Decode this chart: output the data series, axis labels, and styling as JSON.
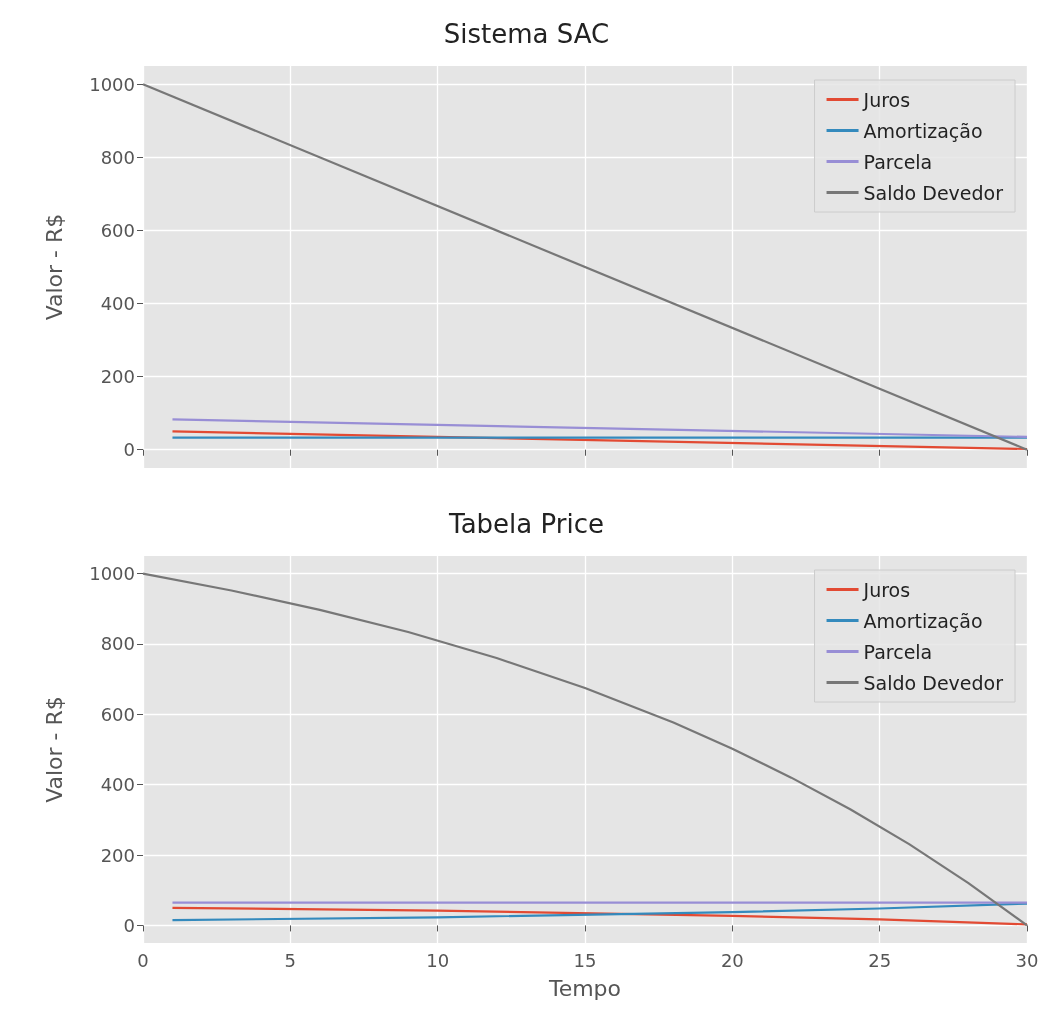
{
  "chart_data": [
    {
      "type": "line",
      "title": "Sistema SAC",
      "ylabel": "Valor - R$",
      "xlim": [
        0,
        30
      ],
      "xticks": [
        0,
        5,
        10,
        15,
        20,
        25,
        30
      ],
      "ylim": [
        -50,
        1050
      ],
      "yticks": [
        0,
        200,
        400,
        600,
        800,
        1000
      ],
      "tick_labels": "y",
      "grid": true,
      "legend": "top right",
      "series": [
        {
          "name": "Juros",
          "color": "#e24a33",
          "x": [
            1,
            30
          ],
          "values": [
            50,
            2
          ]
        },
        {
          "name": "Amortização",
          "color": "#348abd",
          "x": [
            1,
            30
          ],
          "values": [
            33,
            33
          ]
        },
        {
          "name": "Parcela",
          "color": "#988ed5",
          "x": [
            1,
            30
          ],
          "values": [
            83,
            35
          ]
        },
        {
          "name": "Saldo Devedor",
          "color": "#777777",
          "x": [
            0,
            30
          ],
          "values": [
            1000,
            0
          ]
        }
      ]
    },
    {
      "type": "line",
      "title": "Tabela Price",
      "xlabel": "Tempo",
      "ylabel": "Valor - R$",
      "xlim": [
        0,
        30
      ],
      "xticks": [
        0,
        5,
        10,
        15,
        20,
        25,
        30
      ],
      "ylim": [
        -50,
        1050
      ],
      "yticks": [
        0,
        200,
        400,
        600,
        800,
        1000
      ],
      "grid": true,
      "legend": "top right",
      "series": [
        {
          "name": "Juros",
          "color": "#e24a33",
          "x": [
            1,
            10,
            20,
            25,
            30
          ],
          "values": [
            50,
            42,
            27,
            17,
            3
          ]
        },
        {
          "name": "Amortização",
          "color": "#348abd",
          "x": [
            1,
            10,
            20,
            25,
            30
          ],
          "values": [
            15,
            23,
            38,
            48,
            62
          ]
        },
        {
          "name": "Parcela",
          "color": "#988ed5",
          "x": [
            1,
            30
          ],
          "values": [
            65,
            65
          ]
        },
        {
          "name": "Saldo Devedor",
          "color": "#777777",
          "x": [
            0,
            3,
            6,
            9,
            12,
            15,
            18,
            20,
            22,
            24,
            26,
            28,
            30
          ],
          "values": [
            1000,
            952,
            897,
            834,
            760,
            675,
            577,
            502,
            420,
            330,
            231,
            121,
            0
          ]
        }
      ]
    }
  ]
}
